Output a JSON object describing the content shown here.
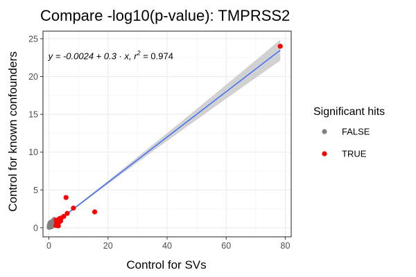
{
  "chart_data": {
    "type": "scatter",
    "title": "Compare -log10(p-value): TMPRSS2",
    "xlabel": "Control for SVs",
    "ylabel": "Control for known confounders",
    "xlim": [
      -2,
      82
    ],
    "ylim": [
      -1.2,
      26
    ],
    "x_ticks": [
      0,
      20,
      40,
      60,
      80
    ],
    "y_ticks": [
      0,
      5,
      10,
      15,
      20,
      25
    ],
    "grid": true,
    "legend": {
      "title": "Significant hits",
      "placement": "right",
      "entries": [
        {
          "label": "FALSE",
          "color": "#808080"
        },
        {
          "label": "TRUE",
          "color": "#ff0000"
        }
      ]
    },
    "annotation": {
      "text_prefix": "y = -0.0024 + 0.3 · x,  r",
      "superscript": "2",
      "text_suffix": " = 0.974"
    },
    "regression": {
      "intercept": -0.0024,
      "slope": 0.3,
      "line_color": "#3366ff",
      "band_color": "#cccccc",
      "band_width_at_max_x": 1.3
    },
    "series": [
      {
        "name": "FALSE",
        "color": "#808080",
        "points": [
          [
            0.1,
            0.05
          ],
          [
            0.2,
            0.15
          ],
          [
            0.3,
            0.1
          ],
          [
            0.4,
            0.3
          ],
          [
            0.5,
            0.2
          ],
          [
            0.6,
            0.45
          ],
          [
            0.7,
            0.25
          ],
          [
            0.8,
            0.55
          ],
          [
            0.9,
            0.35
          ],
          [
            1.0,
            0.6
          ],
          [
            1.1,
            0.4
          ],
          [
            1.2,
            0.8
          ],
          [
            1.3,
            0.5
          ],
          [
            1.4,
            0.9
          ],
          [
            1.5,
            0.65
          ],
          [
            1.6,
            1.0
          ],
          [
            1.7,
            0.7
          ],
          [
            1.8,
            1.1
          ],
          [
            1.9,
            0.5
          ],
          [
            2.0,
            0.9
          ],
          [
            0.3,
            0.5
          ],
          [
            0.5,
            0.7
          ],
          [
            0.2,
            0.4
          ],
          [
            0.8,
            0.2
          ],
          [
            1.0,
            0.15
          ],
          [
            1.2,
            0.3
          ],
          [
            0.4,
            0.6
          ],
          [
            0.6,
            0.1
          ],
          [
            2.2,
            0.8
          ],
          [
            2.4,
            0.6
          ],
          [
            1.5,
            0.3
          ],
          [
            0.9,
            0.75
          ],
          [
            1.8,
            0.4
          ],
          [
            2.6,
            0.9
          ],
          [
            0.15,
            0.25
          ]
        ]
      },
      {
        "name": "TRUE",
        "color": "#ff0000",
        "points": [
          [
            78.3,
            24.0
          ],
          [
            15.5,
            2.1
          ],
          [
            5.8,
            4.0
          ],
          [
            8.3,
            2.6
          ],
          [
            6.2,
            1.9
          ],
          [
            5.0,
            1.5
          ],
          [
            4.2,
            1.3
          ],
          [
            3.5,
            1.2
          ],
          [
            3.0,
            1.0
          ],
          [
            2.6,
            0.7
          ],
          [
            2.8,
            0.4
          ],
          [
            3.2,
            0.25
          ],
          [
            2.4,
            0.3
          ],
          [
            3.6,
            0.8
          ],
          [
            2.5,
            1.0
          ],
          [
            4.0,
            0.9
          ]
        ]
      }
    ]
  }
}
